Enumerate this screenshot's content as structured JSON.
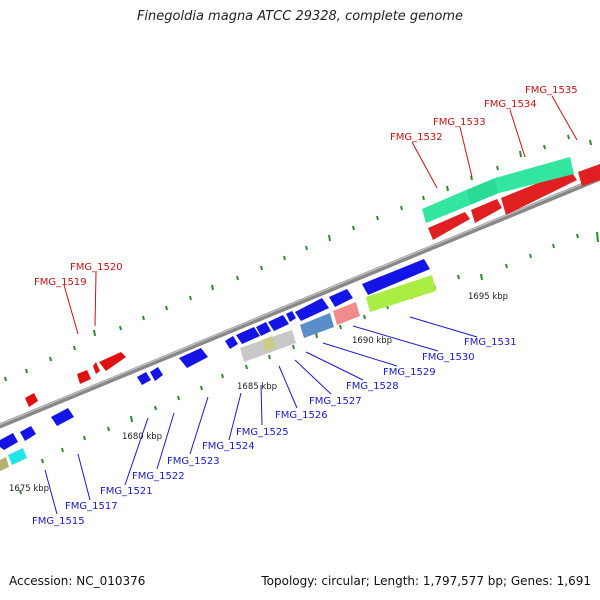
{
  "title": "Finegoldia magna ATCC 29328, complete genome",
  "footer": {
    "accession": "Accession: NC_010376",
    "summary": "Topology: circular; Length: 1,797,577 bp; Genes: 1,691"
  },
  "colors": {
    "forward_label": "#cc1111",
    "reverse_label": "#1a1acc",
    "backbone": "#8a8a8a",
    "tick": "#2e8b2e"
  },
  "scale_labels": [
    "1675 kbp",
    "1680 kbp",
    "1685 kbp",
    "1690 kbp",
    "1695 kbp"
  ],
  "top_labels": [
    "FMG_1519",
    "FMG_1520",
    "FMG_1532",
    "FMG_1533",
    "FMG_1534",
    "FMG_1535"
  ],
  "bottom_labels": [
    "FMG_1515",
    "FMG_1517",
    "FMG_1521",
    "FMG_1522",
    "FMG_1523",
    "FMG_1524",
    "FMG_1525",
    "FMG_1526",
    "FMG_1527",
    "FMG_1528",
    "FMG_1529",
    "FMG_1530",
    "FMG_1531"
  ]
}
